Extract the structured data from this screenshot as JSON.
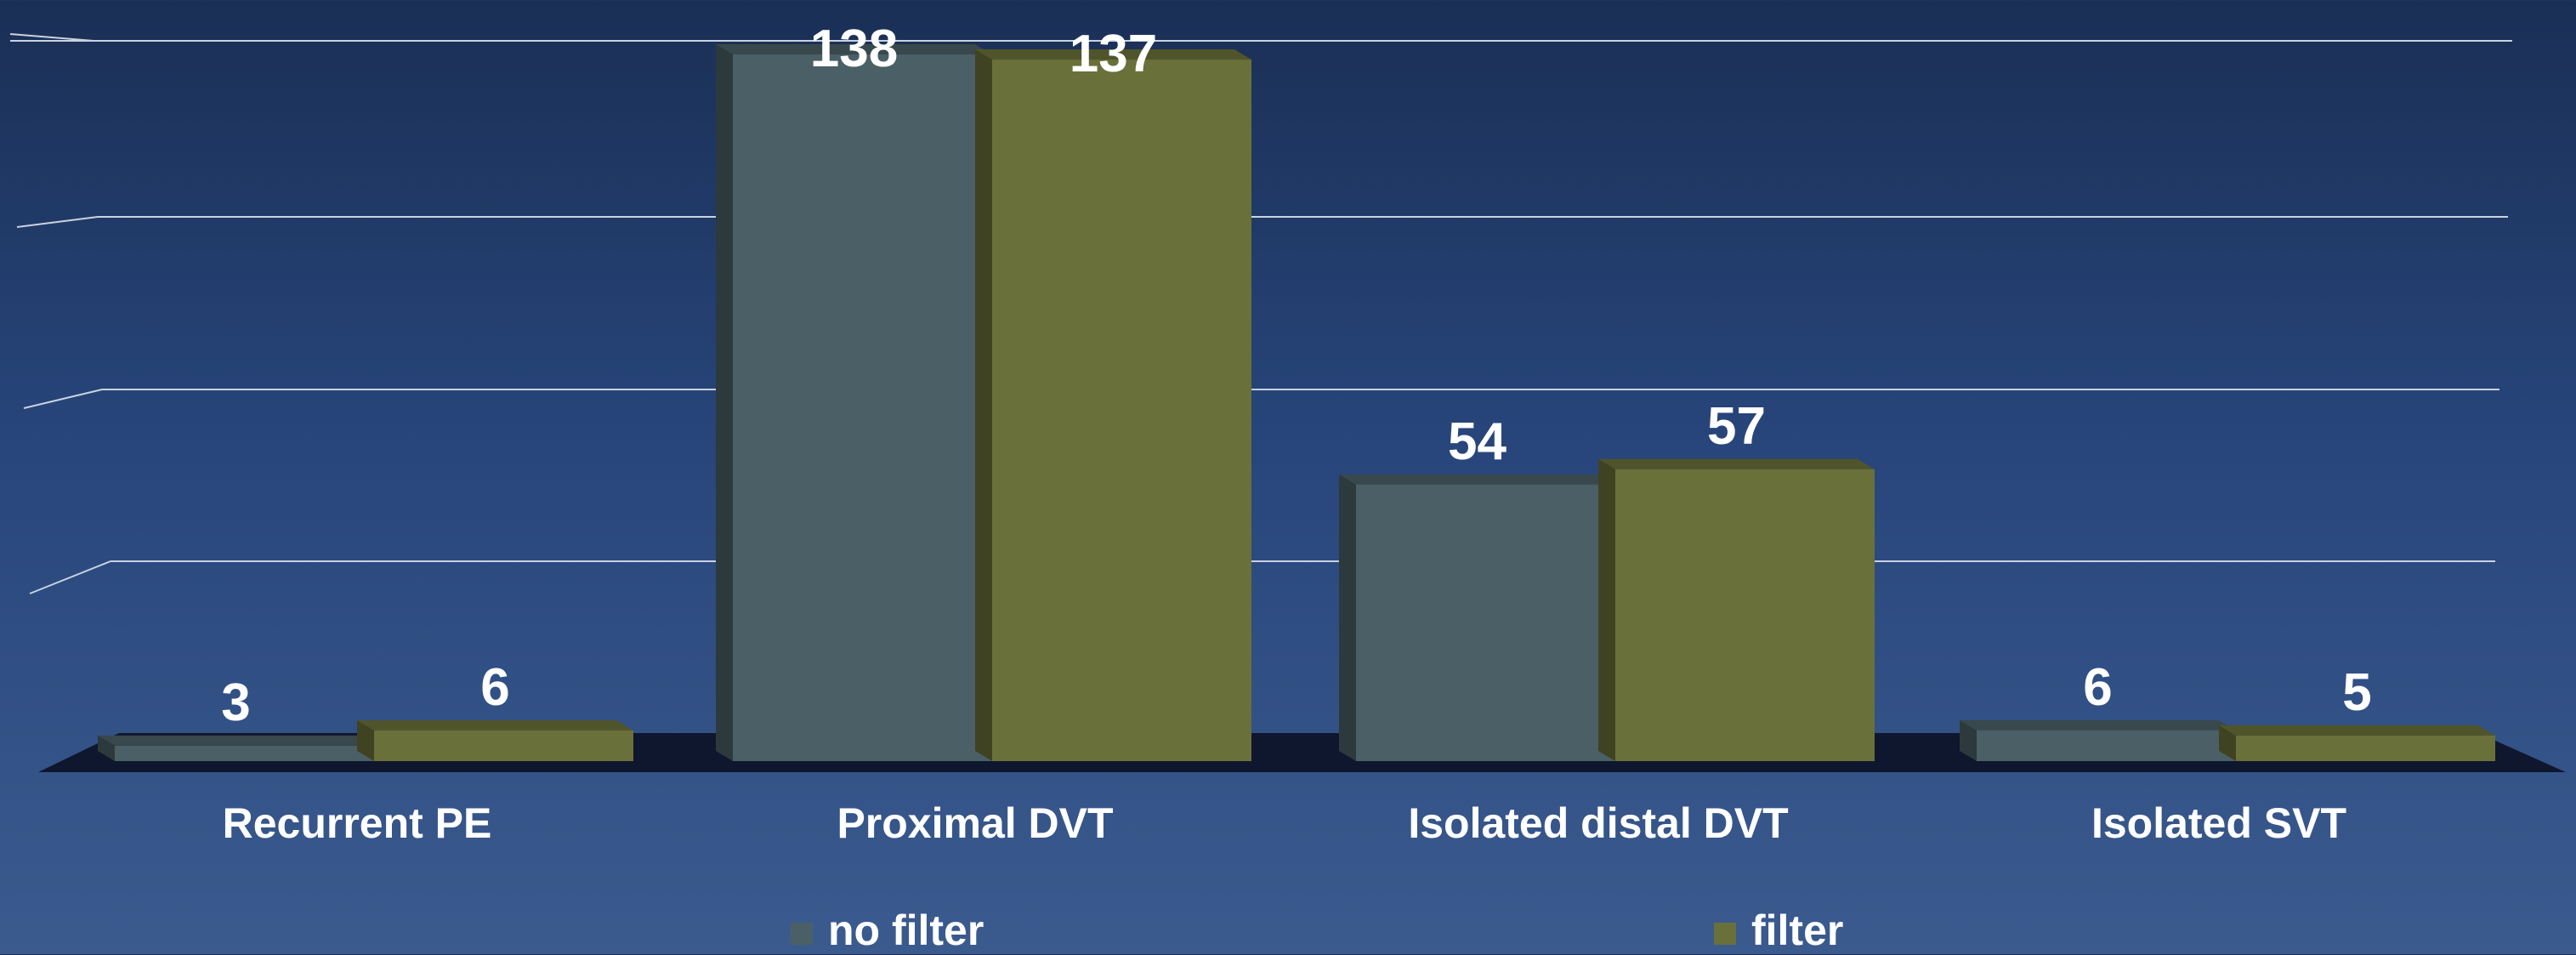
{
  "chart_data": {
    "type": "bar",
    "title": "",
    "xlabel": "",
    "ylabel": "",
    "categories": [
      "Recurrent PE",
      "Proximal DVT",
      "Isolated distal DVT",
      "Isolated SVT"
    ],
    "series": [
      {
        "name": "no filter",
        "values": [
          3,
          138,
          54,
          6
        ]
      },
      {
        "name": "filter",
        "values": [
          6,
          137,
          57,
          5
        ]
      }
    ],
    "ylim": [
      0,
      140
    ],
    "grid": true,
    "legend_position": "bottom",
    "style": "3d-columns",
    "colors": {
      "no filter": "#4a6066",
      "filter": "#6a7039",
      "gridline": "#c9d2e0",
      "floor": "#0d1428",
      "label": "#ffffff"
    }
  },
  "legend": {
    "items": [
      {
        "label": "no filter",
        "color": "#4a6066"
      },
      {
        "label": "filter",
        "color": "#6a7039"
      }
    ]
  }
}
